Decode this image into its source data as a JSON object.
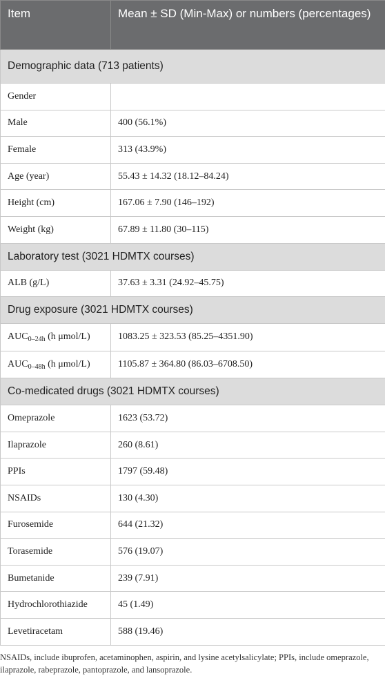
{
  "table": {
    "header": [
      "Item",
      "Mean ± SD (Min-Max) or numbers (percentages)"
    ],
    "sections": [
      {
        "title": "Demographic data (713 patients)",
        "rows": [
          [
            "Gender"
          ],
          [
            "Male",
            "400 (56.1%)"
          ],
          [
            "Female",
            "313 (43.9%)"
          ],
          [
            "Age (year)",
            "55.43 ± 14.32 (18.12–84.24)"
          ],
          [
            "Height (cm)",
            "167.06 ± 7.90 (146–192)"
          ],
          [
            "Weight (kg)",
            "67.89 ± 11.80 (30–115)"
          ]
        ]
      },
      {
        "title": "Laboratory test (3021 HDMTX courses)",
        "rows": [
          [
            "ALB (g/L)",
            "37.63 ± 3.31 (24.92–45.75)"
          ]
        ]
      },
      {
        "title": "Drug exposure (3021 HDMTX courses)",
        "rows": [
          [
            {
              "text": "AUC",
              "sub": "0–24h",
              "rest": " (h μmol/L)"
            },
            "1083.25 ± 323.53 (85.25–4351.90)"
          ],
          [
            {
              "text": "AUC",
              "sub": "0–48h",
              "rest": " (h μmol/L)"
            },
            "1105.87 ± 364.80 (86.03–6708.50)"
          ]
        ]
      },
      {
        "title": "Co-medicated drugs (3021 HDMTX courses)",
        "rows": [
          [
            "Omeprazole",
            "1623 (53.72)"
          ],
          [
            "Ilaprazole",
            "260 (8.61)"
          ],
          [
            "PPIs",
            "1797 (59.48)"
          ],
          [
            "NSAIDs",
            "130 (4.30)"
          ],
          [
            "Furosemide",
            "644 (21.32)"
          ],
          [
            "Torasemide",
            "576 (19.07)"
          ],
          [
            "Bumetanide",
            "239 (7.91)"
          ],
          [
            "Hydrochlorothiazide",
            "45 (1.49)"
          ],
          [
            "Levetiracetam",
            "588 (19.46)"
          ]
        ]
      }
    ]
  },
  "footnote": "NSAIDs, include ibuprofen, acetaminophen, aspirin, and lysine acetylsalicylate; PPIs, include omeprazole, ilaprazole, rabeprazole, pantoprazole, and lansoprazole."
}
